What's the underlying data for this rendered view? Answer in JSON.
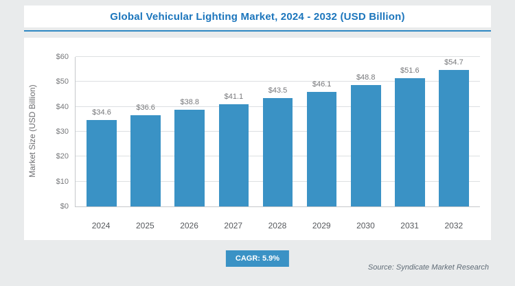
{
  "header": {
    "title": "Global Vehicular Lighting Market, 2024 - 2032 (USD Billion)"
  },
  "chart_data": {
    "type": "bar",
    "title": "Global Vehicular Lighting Market, 2024 - 2032 (USD Billion)",
    "categories": [
      "2024",
      "2025",
      "2026",
      "2027",
      "2028",
      "2029",
      "2030",
      "2031",
      "2032"
    ],
    "values": [
      34.6,
      36.6,
      38.8,
      41.1,
      43.5,
      46.1,
      48.8,
      51.6,
      54.7
    ],
    "value_labels": [
      "$34.6",
      "$36.6",
      "$38.8",
      "$41.1",
      "$43.5",
      "$46.1",
      "$48.8",
      "$51.6",
      "$54.7"
    ],
    "xlabel": "",
    "ylabel": "Market Size (USD Billion)",
    "ylim": [
      0,
      60
    ],
    "ytick_labels": [
      "$0",
      "$10",
      "$20",
      "$30",
      "$40",
      "$50",
      "$60"
    ],
    "grid": true,
    "legend_position": "none",
    "bar_color": "#3a92c5"
  },
  "footer": {
    "cagr": "CAGR: 5.9%",
    "source": "Source: Syndicate Market Research"
  },
  "colors": {
    "background": "#e9ebec",
    "panel": "#ffffff",
    "title_blue": "#1b75bc",
    "accent_blue": "#2d87c3",
    "bar_blue": "#3a92c5",
    "label_gray": "#76777a"
  }
}
